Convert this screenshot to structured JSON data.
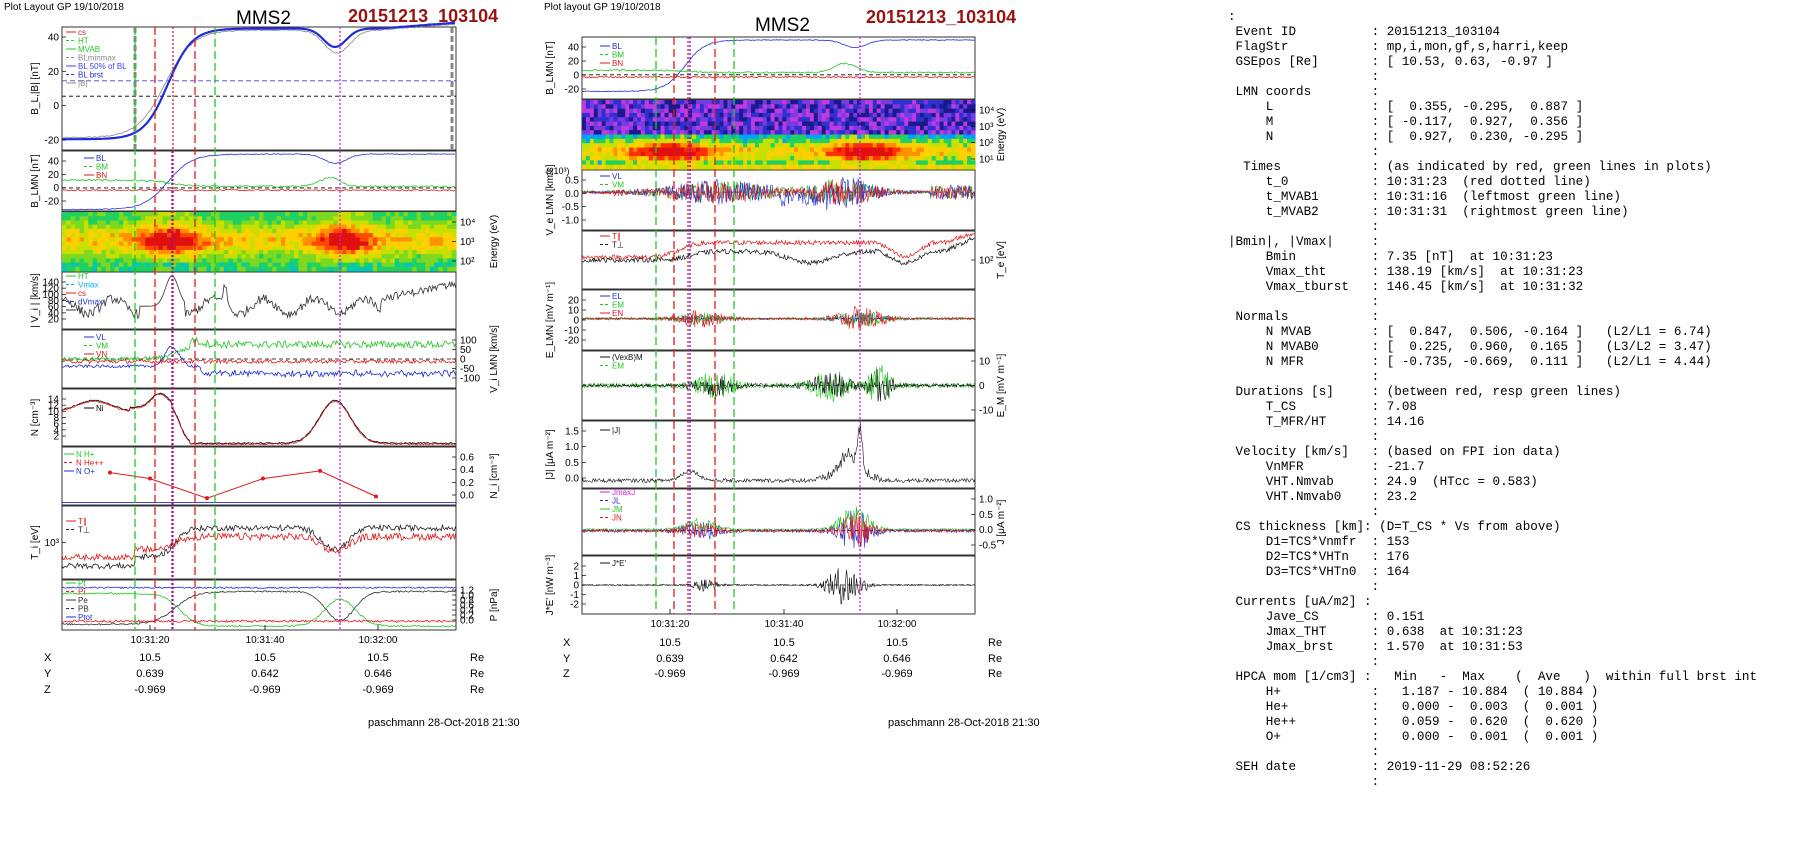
{
  "left_plot": {
    "header": "Plot Layout GP 19/10/2018",
    "spacecraft": "MMS2",
    "event": "20151213_103104",
    "footer": "paschmann 28-Oct-2018 21:30",
    "time_ticks": [
      "10:31:20",
      "10:31:40",
      "10:32:00"
    ],
    "coord_rows": [
      {
        "label": "X",
        "values": [
          "10.5",
          "10.5",
          "10.5"
        ],
        "unit": "Re"
      },
      {
        "label": "Y",
        "values": [
          "0.639",
          "0.642",
          "0.646"
        ],
        "unit": "Re"
      },
      {
        "label": "Z",
        "values": [
          "-0.969",
          "-0.969",
          "-0.969"
        ],
        "unit": "Re"
      }
    ],
    "panels": [
      {
        "ylabel": "B_L,|B| [nT]",
        "right_label": "",
        "ticks": [
          "40",
          "20",
          "0",
          "-20"
        ],
        "legend": [
          "cs",
          "HT",
          "MVAB",
          "BLminmax",
          "BL 50% of BL",
          "BL brst",
          "|B|"
        ]
      },
      {
        "ylabel": "B_LMN [nT]",
        "right_label": "",
        "ticks": [
          "40",
          "20",
          "0",
          "-20"
        ],
        "legend": [
          "BL",
          "BM",
          "BN"
        ]
      },
      {
        "ylabel": "",
        "right_label": "Energy (eV)",
        "ticks": [
          "10⁴",
          "10³",
          "10²"
        ],
        "legend": []
      },
      {
        "ylabel": "| V_i | [km/s]",
        "right_label": "",
        "ticks": [
          "140",
          "120",
          "100",
          "80",
          "60",
          "40",
          "20"
        ],
        "legend": [
          "HT",
          "Vmax",
          "cs",
          "dVmax",
          "V"
        ]
      },
      {
        "ylabel": "",
        "right_label": "V_i LMN [km/s]",
        "ticks": [
          "100",
          "50",
          "0",
          "-50",
          "-100"
        ],
        "legend": [
          "VL",
          "VM",
          "VN"
        ]
      },
      {
        "ylabel": "N [cm⁻³]",
        "right_label": "",
        "ticks": [
          "14",
          "12",
          "10",
          "8",
          "6",
          "4",
          "2"
        ],
        "legend": [
          "Ni"
        ]
      },
      {
        "ylabel": "",
        "right_label": "N_i [cm⁻³]",
        "ticks": [
          "0.6",
          "0.4",
          "0.2",
          "0.0"
        ],
        "legend": [
          "N H+",
          "N He++",
          "N O+"
        ]
      },
      {
        "ylabel": "T_i [eV]",
        "right_label": "",
        "ticks": [
          "10³"
        ],
        "legend": [
          "T∥",
          "T⊥"
        ]
      },
      {
        "ylabel": "",
        "right_label": "P [nPa]",
        "ticks": [
          "1.2",
          "1.0",
          "0.8",
          "0.6",
          "0.4",
          "0.2",
          "0.0"
        ],
        "legend": [
          "Pt",
          "Pi",
          "Pe",
          "PB",
          "Ptot"
        ]
      }
    ]
  },
  "right_plot": {
    "header": "Plot layout GP 19/10/2018",
    "spacecraft": "MMS2",
    "event": "20151213_103104",
    "footer": "paschmann 28-Oct-2018 21:30",
    "time_ticks": [
      "10:31:20",
      "10:31:40",
      "10:32:00"
    ],
    "coord_rows": [
      {
        "label": "X",
        "values": [
          "10.5",
          "10.5",
          "10.5"
        ],
        "unit": "Re"
      },
      {
        "label": "Y",
        "values": [
          "0.639",
          "0.642",
          "0.646"
        ],
        "unit": "Re"
      },
      {
        "label": "Z",
        "values": [
          "-0.969",
          "-0.969",
          "-0.969"
        ],
        "unit": "Re"
      }
    ],
    "panels": [
      {
        "ylabel": "B_LMN [nT]",
        "right_label": "",
        "ticks": [
          "40",
          "20",
          "0",
          "-20"
        ],
        "legend": [
          "BL",
          "BM",
          "BN"
        ]
      },
      {
        "ylabel": "",
        "right_label": "Energy (eV)",
        "ticks": [
          "10⁴",
          "10³",
          "10²",
          "10¹"
        ],
        "legend": []
      },
      {
        "ylabel": "V_e LMN [km/s]",
        "right_label": "",
        "top_label": "(x10³)",
        "ticks": [
          "0.5",
          "0.0",
          "-0.5",
          "-1.0"
        ],
        "legend": [
          "VL",
          "VM",
          "VN"
        ]
      },
      {
        "ylabel": "",
        "right_label": "T_e [eV]",
        "ticks": [
          "10²"
        ],
        "legend": [
          "T∥",
          "T⊥"
        ]
      },
      {
        "ylabel": "E_LMN [mV m⁻¹]",
        "right_label": "",
        "ticks": [
          "20",
          "10",
          "0",
          "-10",
          "-20"
        ],
        "legend": [
          "EL",
          "EM",
          "EN"
        ]
      },
      {
        "ylabel": "",
        "right_label": "E_M [mV m⁻¹]",
        "ticks": [
          "10",
          "0",
          "-10"
        ],
        "legend": [
          "(VexB)M",
          "EM"
        ]
      },
      {
        "ylabel": "|J| [μA m⁻²]",
        "right_label": "",
        "ticks": [
          "1.5",
          "1.0",
          "0.5",
          "0.0"
        ],
        "legend": [
          "|J|"
        ]
      },
      {
        "ylabel": "",
        "right_label": "J [μA m⁻²]",
        "ticks": [
          "1.0",
          "0.5",
          "0.0",
          "-0.5"
        ],
        "legend": [
          "JmaxJ",
          "JL",
          "JM",
          "JN"
        ]
      },
      {
        "ylabel": "J*E' [nW m⁻³]",
        "right_label": "",
        "ticks": [
          "2",
          "1",
          "0",
          "-1",
          "-2"
        ],
        "legend": [
          "J*E'"
        ]
      }
    ]
  },
  "info_lines": [
    ":",
    " Event ID          : 20151213_103104",
    " FlagStr           : mp,i,mon,gf,s,harri,keep",
    " GSEpos [Re]       : [ 10.53, 0.63, -0.97 ]",
    "                   :",
    " LMN coords        :",
    "     L             : [  0.355, -0.295,  0.887 ]",
    "     M             : [ -0.117,  0.927,  0.356 ]",
    "     N             : [  0.927,  0.230, -0.295 ]",
    "                   :",
    "  Times            : (as indicated by red, green lines in plots)",
    "     t_0           : 10:31:23  (red dotted line)",
    "     t_MVAB1       : 10:31:16  (leftmost green line)",
    "     t_MVAB2       : 10:31:31  (rightmost green line)",
    "                   :",
    "|Bmin|, |Vmax|     :",
    "     Bmin          : 7.35 [nT]  at 10:31:23",
    "     Vmax_tht      : 138.19 [km/s]  at 10:31:23",
    "     Vmax_tburst   : 146.45 [km/s]  at 10:31:32",
    "                   :",
    " Normals           :",
    "     N MVAB        : [  0.847,  0.506, -0.164 ]   (L2/L1 = 6.74)",
    "     N MVAB0       : [  0.225,  0.960,  0.165 ]   (L3/L2 = 3.47)",
    "     N MFR         : [ -0.735, -0.669,  0.111 ]   (L2/L1 = 4.44)",
    "                   :",
    " Durations [s]     : (between red, resp green lines)",
    "     T_CS          : 7.08",
    "     T_MFR/HT      : 14.16",
    "                   :",
    " Velocity [km/s]   : (based on FPI ion data)",
    "     VnMFR         : -21.7",
    "     VHT.Nmvab     : 24.9  (HTcc = 0.583)",
    "     VHT.Nmvab0    : 23.2",
    "                   :",
    " CS thickness [km]: (D=T_CS * Vs from above)",
    "     D1=TCS*Vnmfr  : 153",
    "     D2=TCS*VHTn   : 176",
    "     D3=TCS*VHTn0  : 164",
    "                   :",
    " Currents [uA/m2] :",
    "     Jave_CS       : 0.151",
    "     Jmax_THT      : 0.638  at 10:31:23",
    "     Jmax_brst     : 1.570  at 10:31:53",
    "                   :",
    " HPCA mom [1/cm3] :   Min   -  Max    (  Ave   )  within full brst int",
    "     H+            :   1.187 - 10.884  ( 10.884 )",
    "     He+           :   0.000 -  0.003  (  0.001 )",
    "     He++          :   0.059 -  0.620  (  0.620 )",
    "     O+            :   0.000 -  0.001  (  0.001 )",
    "                   :",
    " SEH date          : 2019-11-29 08:52:26",
    "                   :"
  ],
  "colors": {
    "blue": "#1f2dd8",
    "red": "#e01a1a",
    "green": "#1fc81f",
    "black": "#000000",
    "gray": "#888888",
    "magenta": "#e018e0",
    "purple": "#7a00ff",
    "dark_red": "#9b1111"
  }
}
